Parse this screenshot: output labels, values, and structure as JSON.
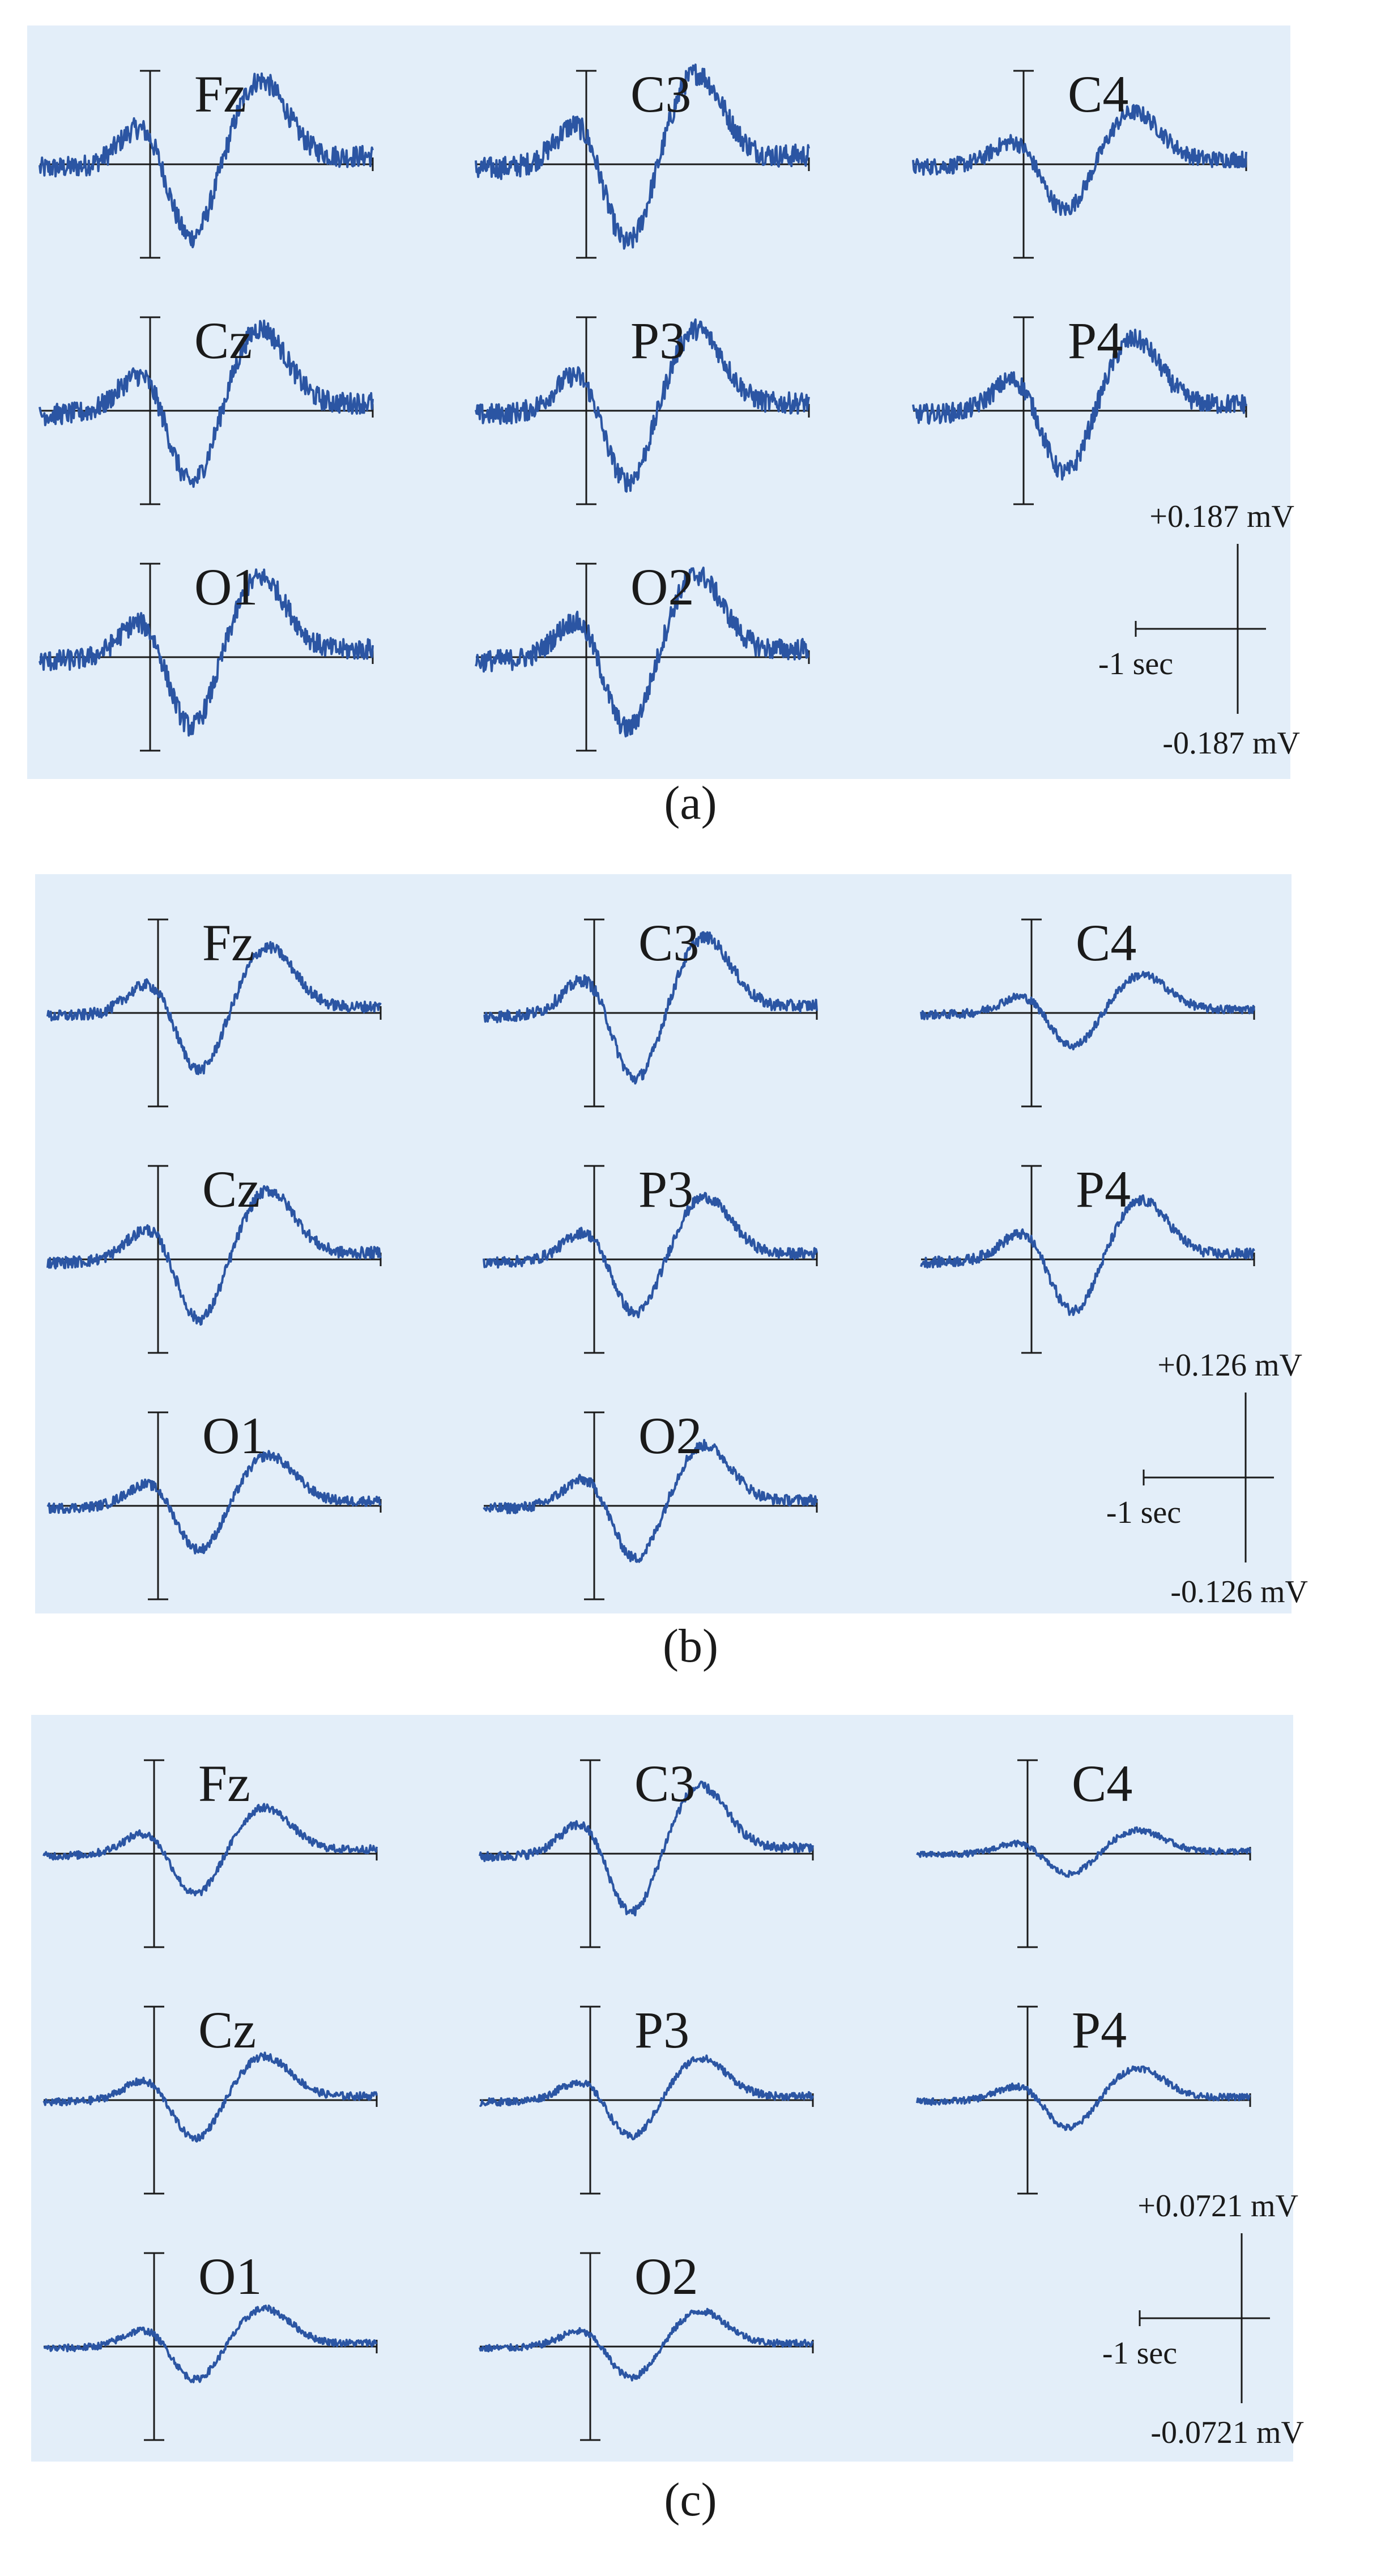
{
  "colors": {
    "panel_bg": "#e3eef9",
    "trace": "#2b55a3",
    "axis": "#1a1a1a"
  },
  "chart_data": [
    {
      "type": "line",
      "caption": "(a)",
      "time_scale_label": "-1 sec",
      "amp_max_label": "+0.187 mV",
      "amp_min_label": "-0.187 mV",
      "ylim": [
        -0.187,
        0.187
      ],
      "noise": 0.02,
      "channels": [
        {
          "name": "Fz",
          "amp": 1.0
        },
        {
          "name": "C3",
          "amp": 1.08
        },
        {
          "name": "C4",
          "amp": 0.62
        },
        {
          "name": "Cz",
          "amp": 0.98
        },
        {
          "name": "P3",
          "amp": 0.97
        },
        {
          "name": "P4",
          "amp": 0.85
        },
        {
          "name": "O1",
          "amp": 0.95
        },
        {
          "name": "O2",
          "amp": 0.98
        }
      ]
    },
    {
      "type": "line",
      "caption": "(b)",
      "time_scale_label": "-1 sec",
      "amp_max_label": "+0.126 mV",
      "amp_min_label": "-0.126 mV",
      "ylim": [
        -0.126,
        0.126
      ],
      "noise": 0.012,
      "channels": [
        {
          "name": "Fz",
          "amp": 0.78
        },
        {
          "name": "C3",
          "amp": 0.9
        },
        {
          "name": "C4",
          "amp": 0.45
        },
        {
          "name": "Cz",
          "amp": 0.82
        },
        {
          "name": "P3",
          "amp": 0.74
        },
        {
          "name": "P4",
          "amp": 0.7
        },
        {
          "name": "O1",
          "amp": 0.6
        },
        {
          "name": "O2",
          "amp": 0.72
        }
      ]
    },
    {
      "type": "line",
      "caption": "(c)",
      "time_scale_label": "-1 sec",
      "amp_max_label": "+0.0721 mV",
      "amp_min_label": "-0.0721 mV",
      "ylim": [
        -0.0721,
        0.0721
      ],
      "noise": 0.01,
      "channels": [
        {
          "name": "Fz",
          "amp": 0.55
        },
        {
          "name": "C3",
          "amp": 0.8
        },
        {
          "name": "C4",
          "amp": 0.28
        },
        {
          "name": "Cz",
          "amp": 0.52
        },
        {
          "name": "P3",
          "amp": 0.5
        },
        {
          "name": "P4",
          "amp": 0.38
        },
        {
          "name": "O1",
          "amp": 0.45
        },
        {
          "name": "O2",
          "amp": 0.42
        }
      ]
    }
  ]
}
